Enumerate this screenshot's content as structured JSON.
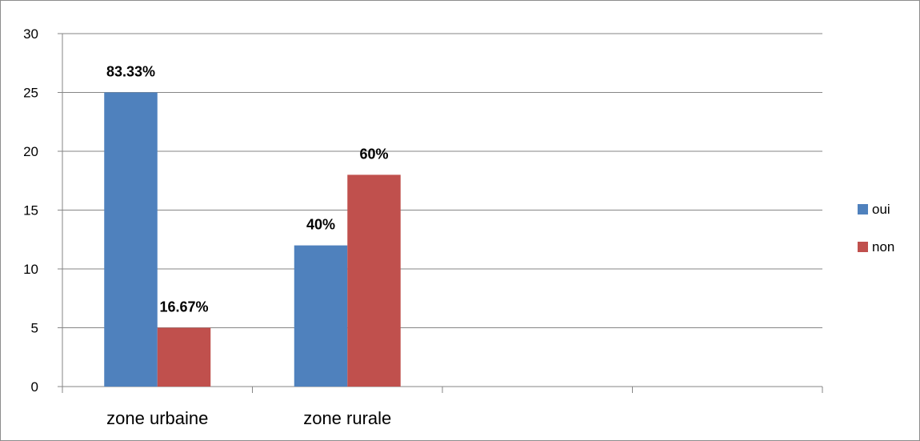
{
  "chart_data": {
    "type": "bar",
    "categories": [
      "zone urbaine",
      "zone rurale",
      "",
      ""
    ],
    "series": [
      {
        "name": "oui",
        "color": "#4f81bd",
        "values": [
          25,
          12,
          null,
          null
        ],
        "labels": [
          "83.33%",
          "40%",
          null,
          null
        ]
      },
      {
        "name": "non",
        "color": "#c0504d",
        "values": [
          5,
          18,
          null,
          null
        ],
        "labels": [
          "16.67%",
          "60%",
          null,
          null
        ]
      }
    ],
    "title": "",
    "xlabel": "",
    "ylabel": "",
    "ylim": [
      0,
      30
    ],
    "yticks": [
      0,
      5,
      10,
      15,
      20,
      25,
      30
    ],
    "grid": true,
    "legend_position": "right"
  }
}
